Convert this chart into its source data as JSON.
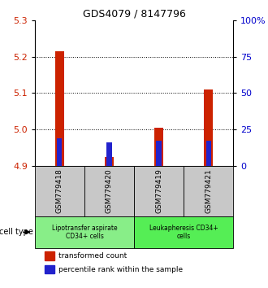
{
  "title": "GDS4079 / 8147796",
  "samples": [
    "GSM779418",
    "GSM779420",
    "GSM779419",
    "GSM779421"
  ],
  "red_values": [
    5.215,
    4.925,
    5.005,
    5.11
  ],
  "blue_values": [
    4.975,
    4.965,
    4.97,
    4.97
  ],
  "ylim_left": [
    4.9,
    5.3
  ],
  "ylim_right": [
    0,
    100
  ],
  "yticks_left": [
    4.9,
    5.0,
    5.1,
    5.2,
    5.3
  ],
  "yticks_right": [
    0,
    25,
    50,
    75,
    100
  ],
  "ytick_labels_right": [
    "0",
    "25",
    "50",
    "75",
    "100%"
  ],
  "left_color": "#cc2200",
  "right_color": "#0000cc",
  "red_bar_width": 0.18,
  "blue_bar_width": 0.1,
  "group1_label": "Lipotransfer aspirate\nCD34+ cells",
  "group2_label": "Leukapheresis CD34+\ncells",
  "group1_color": "#88ee88",
  "group2_color": "#55ee55",
  "cell_type_label": "cell type",
  "legend_red": "transformed count",
  "legend_blue": "percentile rank within the sample",
  "base_value": 4.9,
  "dotted_gridlines": [
    5.0,
    5.1,
    5.2
  ],
  "sample_box_color": "#c8c8c8",
  "title_fontsize": 9,
  "tick_fontsize": 8,
  "label_fontsize": 6.5
}
